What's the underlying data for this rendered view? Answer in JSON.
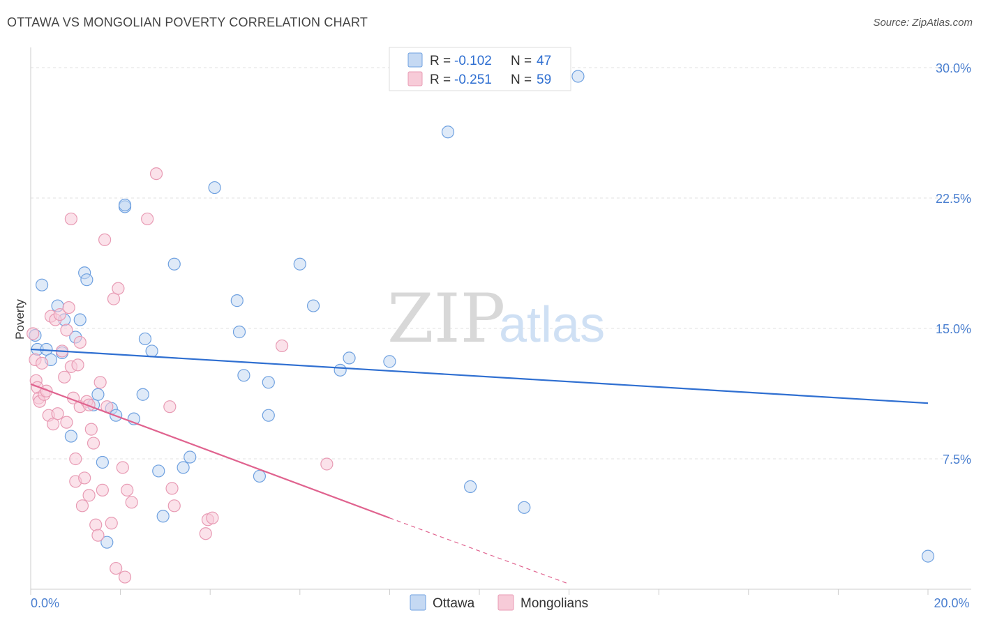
{
  "header": {
    "title": "OTTAWA VS MONGOLIAN POVERTY CORRELATION CHART",
    "source": "Source: ZipAtlas.com"
  },
  "watermark": {
    "zip": "ZIP",
    "atlas": "atlas"
  },
  "chart_data": {
    "type": "scatter",
    "title": "OTTAWA VS MONGOLIAN POVERTY CORRELATION CHART",
    "xlabel": "",
    "ylabel": "Poverty",
    "xlim": [
      0,
      20
    ],
    "ylim": [
      0,
      30
    ],
    "x_ticks": [
      0,
      20
    ],
    "x_tick_labels": [
      "0.0%",
      "20.0%"
    ],
    "y_ticks": [
      7.5,
      15,
      22.5,
      30
    ],
    "y_tick_labels": [
      "7.5%",
      "15.0%",
      "22.5%",
      "30.0%"
    ],
    "grid": true,
    "legend_position": "top-center",
    "legend": [
      {
        "r_label": "R =",
        "r_value": "-0.102",
        "n_label": "N =",
        "n_value": "47"
      },
      {
        "r_label": "R =",
        "r_value": "-0.251",
        "n_label": "N =",
        "n_value": "59"
      }
    ],
    "series": [
      {
        "name": "Ottawa",
        "color": "#6fa1e0",
        "fill": "#c5d9f3",
        "trend_color": "#2f6fd1",
        "trend": {
          "x": [
            0,
            20
          ],
          "y": [
            13.8,
            10.7
          ]
        },
        "points": [
          [
            0.1,
            14.6
          ],
          [
            0.15,
            13.8
          ],
          [
            0.25,
            17.5
          ],
          [
            0.35,
            13.8
          ],
          [
            0.45,
            13.2
          ],
          [
            0.6,
            16.3
          ],
          [
            0.7,
            13.6
          ],
          [
            0.75,
            15.5
          ],
          [
            0.9,
            8.8
          ],
          [
            1.0,
            14.5
          ],
          [
            1.1,
            15.5
          ],
          [
            1.2,
            18.2
          ],
          [
            1.25,
            17.8
          ],
          [
            1.4,
            10.6
          ],
          [
            1.5,
            11.2
          ],
          [
            1.6,
            7.3
          ],
          [
            1.8,
            10.4
          ],
          [
            1.7,
            2.7
          ],
          [
            1.9,
            10.0
          ],
          [
            2.1,
            22.0
          ],
          [
            2.1,
            22.1
          ],
          [
            2.3,
            9.8
          ],
          [
            2.5,
            11.2
          ],
          [
            2.55,
            14.4
          ],
          [
            2.7,
            13.7
          ],
          [
            2.85,
            6.8
          ],
          [
            2.95,
            4.2
          ],
          [
            3.2,
            18.7
          ],
          [
            3.4,
            7.0
          ],
          [
            3.55,
            7.6
          ],
          [
            4.1,
            23.1
          ],
          [
            4.6,
            16.6
          ],
          [
            4.65,
            14.8
          ],
          [
            4.75,
            12.3
          ],
          [
            5.1,
            6.5
          ],
          [
            5.3,
            11.9
          ],
          [
            5.3,
            10.0
          ],
          [
            6.0,
            18.7
          ],
          [
            6.3,
            16.3
          ],
          [
            6.9,
            12.6
          ],
          [
            7.1,
            13.3
          ],
          [
            8.0,
            13.1
          ],
          [
            9.3,
            26.3
          ],
          [
            9.8,
            5.9
          ],
          [
            11.0,
            4.7
          ],
          [
            12.2,
            29.5
          ],
          [
            20.0,
            1.9
          ]
        ]
      },
      {
        "name": "Mongolians",
        "color": "#e89bb4",
        "fill": "#f7cbd8",
        "trend_color": "#e0638f",
        "trend": {
          "x": [
            0,
            8.0
          ],
          "y": [
            11.8,
            4.1
          ]
        },
        "trend_dashed": {
          "x": [
            8.0,
            12.0
          ],
          "y": [
            4.1,
            0.3
          ]
        },
        "points": [
          [
            0.05,
            14.7
          ],
          [
            0.1,
            13.2
          ],
          [
            0.12,
            12.0
          ],
          [
            0.15,
            11.6
          ],
          [
            0.18,
            11.0
          ],
          [
            0.2,
            10.8
          ],
          [
            0.25,
            13.0
          ],
          [
            0.3,
            11.2
          ],
          [
            0.35,
            11.4
          ],
          [
            0.4,
            10.0
          ],
          [
            0.45,
            15.7
          ],
          [
            0.5,
            9.5
          ],
          [
            0.55,
            15.5
          ],
          [
            0.6,
            10.1
          ],
          [
            0.65,
            15.8
          ],
          [
            0.7,
            13.7
          ],
          [
            0.75,
            12.2
          ],
          [
            0.8,
            9.6
          ],
          [
            0.8,
            14.9
          ],
          [
            0.85,
            16.2
          ],
          [
            0.9,
            12.8
          ],
          [
            0.9,
            21.3
          ],
          [
            0.95,
            11.0
          ],
          [
            1.0,
            7.5
          ],
          [
            1.0,
            6.2
          ],
          [
            1.05,
            12.9
          ],
          [
            1.1,
            10.5
          ],
          [
            1.1,
            14.2
          ],
          [
            1.15,
            4.8
          ],
          [
            1.2,
            6.4
          ],
          [
            1.25,
            10.8
          ],
          [
            1.3,
            10.6
          ],
          [
            1.3,
            5.4
          ],
          [
            1.35,
            9.2
          ],
          [
            1.4,
            8.4
          ],
          [
            1.45,
            3.7
          ],
          [
            1.5,
            3.1
          ],
          [
            1.55,
            11.9
          ],
          [
            1.6,
            5.7
          ],
          [
            1.65,
            20.1
          ],
          [
            1.7,
            10.5
          ],
          [
            1.8,
            3.8
          ],
          [
            1.85,
            16.7
          ],
          [
            1.9,
            1.2
          ],
          [
            1.95,
            17.3
          ],
          [
            2.05,
            7.0
          ],
          [
            2.1,
            0.7
          ],
          [
            2.15,
            5.7
          ],
          [
            2.25,
            5.0
          ],
          [
            2.6,
            21.3
          ],
          [
            2.8,
            23.9
          ],
          [
            3.1,
            10.5
          ],
          [
            3.15,
            5.8
          ],
          [
            3.2,
            4.8
          ],
          [
            3.9,
            3.2
          ],
          [
            3.95,
            4.0
          ],
          [
            4.05,
            4.1
          ],
          [
            5.6,
            14.0
          ],
          [
            6.6,
            7.2
          ]
        ]
      }
    ]
  }
}
